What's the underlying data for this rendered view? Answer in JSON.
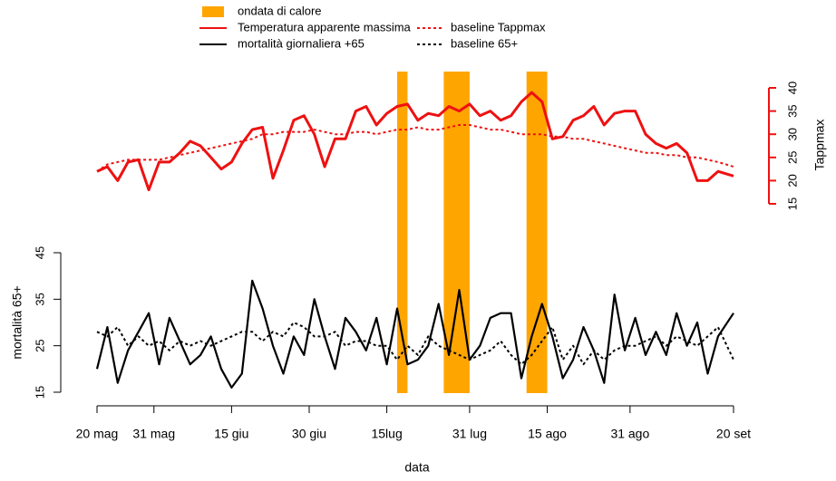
{
  "chart_data": {
    "type": "line",
    "x_label": "data",
    "y_label": "mortalità 65+",
    "y2_label": "Tappmax",
    "x": [
      "05-20",
      "05-22",
      "05-24",
      "05-26",
      "05-28",
      "05-30",
      "06-01",
      "06-03",
      "06-05",
      "06-07",
      "06-09",
      "06-11",
      "06-13",
      "06-15",
      "06-17",
      "06-19",
      "06-21",
      "06-23",
      "06-25",
      "06-27",
      "06-29",
      "07-01",
      "07-03",
      "07-05",
      "07-07",
      "07-09",
      "07-11",
      "07-13",
      "07-15",
      "07-17",
      "07-19",
      "07-21",
      "07-23",
      "07-25",
      "07-27",
      "07-29",
      "07-31",
      "08-02",
      "08-04",
      "08-06",
      "08-08",
      "08-10",
      "08-12",
      "08-14",
      "08-16",
      "08-18",
      "08-20",
      "08-22",
      "08-24",
      "08-26",
      "08-28",
      "08-30",
      "09-01",
      "09-03",
      "09-05",
      "09-07",
      "09-09",
      "09-11",
      "09-13",
      "09-15",
      "09-17",
      "09-20"
    ],
    "xlim": [
      "05-20",
      "09-20"
    ],
    "xticks": [
      {
        "value": "05-20",
        "label": "20 mag"
      },
      {
        "value": "05-31",
        "label": "31 mag"
      },
      {
        "value": "06-15",
        "label": "15 giu"
      },
      {
        "value": "06-30",
        "label": "30 giu"
      },
      {
        "value": "07-15",
        "label": "15lug"
      },
      {
        "value": "07-31",
        "label": "31 lug"
      },
      {
        "value": "08-15",
        "label": "15 ago"
      },
      {
        "value": "08-31",
        "label": "31 ago"
      },
      {
        "value": "09-20",
        "label": "20 set"
      }
    ],
    "ylim": [
      15,
      45
    ],
    "yticks": [
      15,
      25,
      35,
      45
    ],
    "y2lim": [
      15,
      40
    ],
    "y2ticks": [
      15,
      20,
      25,
      30,
      35,
      40
    ],
    "y2color": "#ee1111",
    "legend": "top",
    "bands": {
      "name": "ondata di calore",
      "color": "#ffa500",
      "spans": [
        [
          "07-17",
          "07-19"
        ],
        [
          "07-26",
          "07-31"
        ],
        [
          "08-11",
          "08-15"
        ]
      ]
    },
    "series": [
      {
        "name": "Temperatura apparente massima",
        "color": "#ee1111",
        "linestyle": "solid",
        "axis": "y2",
        "values": [
          22,
          23,
          20,
          24,
          24.5,
          18,
          24,
          24,
          26,
          28.5,
          27.5,
          25,
          22.5,
          24,
          28,
          31,
          31.5,
          20.5,
          26.5,
          33,
          34,
          30,
          23,
          29,
          29,
          35,
          36,
          32,
          34.5,
          36,
          36.5,
          33,
          34.5,
          34,
          36,
          35,
          36.5,
          34,
          35,
          33,
          34,
          37,
          39,
          37,
          29,
          29.5,
          33,
          34,
          36,
          32,
          34.5,
          35,
          35,
          30,
          28,
          27,
          28,
          26,
          20,
          20,
          22,
          21
        ]
      },
      {
        "name": "baseline Tappmax",
        "color": "#ee1111",
        "linestyle": "dotted",
        "axis": "y2",
        "values": [
          22,
          23.5,
          24,
          24.5,
          24.5,
          24.5,
          24.5,
          25,
          25.5,
          26,
          26.5,
          27,
          27.5,
          28,
          28.5,
          29,
          30,
          30,
          30.5,
          30.5,
          30.5,
          31,
          30.5,
          30,
          30,
          30.5,
          30.5,
          30,
          30.5,
          31,
          31,
          31.5,
          31,
          31,
          31.5,
          32,
          32,
          31.5,
          31,
          31,
          30.5,
          30,
          30,
          30,
          29.5,
          29.5,
          29,
          29,
          28.5,
          28,
          27.5,
          27,
          26.5,
          26,
          26,
          25.5,
          25.5,
          25,
          25,
          24.5,
          24,
          23
        ]
      },
      {
        "name": "mortalità giornaliera +65",
        "color": "#000000",
        "linestyle": "solid",
        "axis": "y",
        "values": [
          20,
          29,
          17,
          24,
          28,
          32,
          21,
          31,
          26,
          21,
          23,
          27,
          20,
          16,
          19,
          39,
          33,
          25,
          19,
          27,
          23,
          35,
          27,
          20,
          31,
          28,
          24,
          31,
          21,
          33,
          21,
          22,
          25,
          34,
          23,
          37,
          22,
          25,
          31,
          32,
          32,
          18,
          27,
          34,
          27,
          18,
          22,
          29,
          24,
          17,
          36,
          24,
          31,
          23,
          28,
          23,
          32,
          25,
          30,
          19,
          27,
          32
        ]
      },
      {
        "name": "baseline 65+",
        "color": "#000000",
        "linestyle": "dotted",
        "axis": "y",
        "values": [
          28,
          27,
          29,
          25,
          27,
          25,
          26,
          24,
          26,
          25,
          26,
          25,
          26,
          27,
          28,
          28,
          26,
          28,
          27,
          30,
          29,
          27,
          27,
          28,
          25,
          26,
          26,
          25,
          25,
          22,
          25,
          23,
          27,
          25,
          24,
          23,
          22,
          23,
          24,
          26,
          23,
          21,
          23,
          26,
          29,
          22,
          25,
          21,
          24,
          22,
          24,
          25,
          25,
          26,
          27,
          25,
          27,
          26,
          25,
          27,
          29,
          22
        ]
      }
    ]
  }
}
